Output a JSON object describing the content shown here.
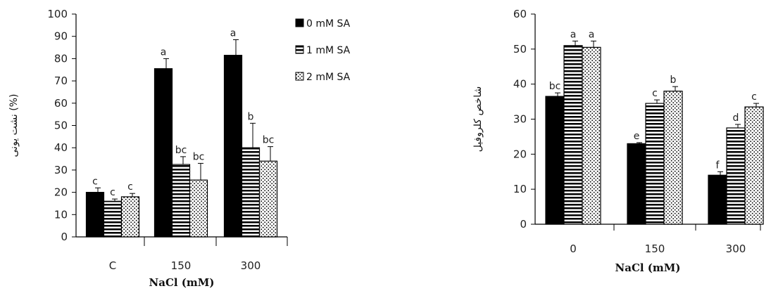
{
  "chart_data": [
    {
      "type": "bar",
      "categories": [
        "C",
        "150",
        "300"
      ],
      "xlabel": "NaCl (mM)",
      "ylabel": "نشت یونی (%)",
      "ylim": [
        0,
        100
      ],
      "yticks": [
        0,
        10,
        20,
        30,
        40,
        50,
        60,
        70,
        80,
        90,
        100
      ],
      "legend_position": "top-right",
      "series": [
        {
          "name": "0 mM SA",
          "pattern": "solid",
          "values": [
            20,
            75.5,
            81.5
          ],
          "errors": [
            2,
            4.5,
            7
          ],
          "letters": [
            "c",
            "a",
            "a"
          ]
        },
        {
          "name": "1 mM SA",
          "pattern": "horizontal-stripes",
          "values": [
            16,
            32.5,
            40
          ],
          "errors": [
            1,
            3.5,
            11
          ],
          "letters": [
            "c",
            "bc",
            "b"
          ]
        },
        {
          "name": "2 mM SA",
          "pattern": "dots",
          "values": [
            18,
            25.5,
            34
          ],
          "errors": [
            1.5,
            7.5,
            6.5
          ],
          "letters": [
            "c",
            "bc",
            "bc"
          ]
        }
      ]
    },
    {
      "type": "bar",
      "categories": [
        "0",
        "150",
        "300"
      ],
      "xlabel": "NaCl (mM)",
      "ylabel": "شاخص کلروفیل",
      "ylim": [
        0,
        60
      ],
      "yticks": [
        0,
        10,
        20,
        30,
        40,
        50,
        60
      ],
      "series": [
        {
          "pattern": "solid",
          "values": [
            36.5,
            23,
            14
          ],
          "errors": [
            1,
            0.3,
            1
          ],
          "letters": [
            "bc",
            "e",
            "f"
          ]
        },
        {
          "pattern": "horizontal-stripes",
          "values": [
            51,
            34.5,
            27.5
          ],
          "errors": [
            1.3,
            1,
            1
          ],
          "letters": [
            "a",
            "c",
            "d"
          ]
        },
        {
          "pattern": "dots",
          "values": [
            50.5,
            38,
            33.5
          ],
          "errors": [
            1.8,
            1.3,
            1
          ],
          "letters": [
            "a",
            "b",
            "c"
          ]
        }
      ]
    }
  ]
}
